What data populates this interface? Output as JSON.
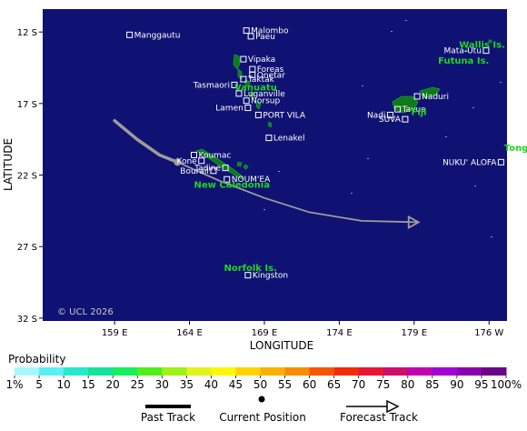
{
  "axes": {
    "xlabel": "LONGITUDE",
    "ylabel": "LATITUDE",
    "xticks": [
      "159 E",
      "164 E",
      "169 E",
      "174 E",
      "179 E",
      "176 W"
    ],
    "yticks": [
      "12 S",
      "17 S",
      "22 S",
      "27 S",
      "32 S"
    ]
  },
  "credit": "© UCL 2026",
  "towns": [
    {
      "name": "Manggautu",
      "lon": 160.0,
      "lat": -12.2
    },
    {
      "name": "Malombo",
      "lon": 167.8,
      "lat": -11.9
    },
    {
      "name": "Paeu",
      "lon": 168.1,
      "lat": -12.3
    },
    {
      "name": "Vipaka",
      "lon": 167.6,
      "lat": -13.9
    },
    {
      "name": "Foreas",
      "lon": 168.2,
      "lat": -14.6
    },
    {
      "name": "Onetar",
      "lon": 168.2,
      "lat": -15.0
    },
    {
      "name": "Taktak",
      "lon": 167.6,
      "lat": -15.3
    },
    {
      "name": "Tasmaori",
      "lon": 167.0,
      "lat": -15.7
    },
    {
      "name": "Luganville",
      "lon": 167.3,
      "lat": -16.3
    },
    {
      "name": "Norsup",
      "lon": 167.8,
      "lat": -16.8
    },
    {
      "name": "Lamen",
      "lon": 167.9,
      "lat": -17.3
    },
    {
      "name": "PORT VILA",
      "lon": 168.6,
      "lat": -17.8
    },
    {
      "name": "Lenakel",
      "lon": 169.3,
      "lat": -19.4
    },
    {
      "name": "Koumac",
      "lon": 164.3,
      "lat": -20.6
    },
    {
      "name": "Kone",
      "lon": 164.8,
      "lat": -21.0
    },
    {
      "name": "Tadine",
      "lon": 166.4,
      "lat": -21.5
    },
    {
      "name": "Bourail",
      "lon": 165.6,
      "lat": -21.7
    },
    {
      "name": "NOUM'EA",
      "lon": 166.5,
      "lat": -22.3
    },
    {
      "name": "Kingston",
      "lon": 167.9,
      "lat": -29.0
    },
    {
      "name": "Naduri",
      "lon": 179.2,
      "lat": -16.5
    },
    {
      "name": "Tavua",
      "lon": 177.9,
      "lat": -17.4
    },
    {
      "name": "Nadi",
      "lon": 177.4,
      "lat": -17.8
    },
    {
      "name": "SUVA",
      "lon": 178.4,
      "lat": -18.1
    },
    {
      "name": "NUKU' ALOFA",
      "lon": -175.2,
      "lat": -21.1
    },
    {
      "name": "Mata-Utu",
      "lon": -176.2,
      "lat": -13.3
    }
  ],
  "regions": [
    {
      "name": "Wallis Is.",
      "lon": -178.0,
      "lat": -13.1
    },
    {
      "name": "Futuna Is.",
      "lon": -179.4,
      "lat": -14.2
    },
    {
      "name": "Vanuatu",
      "lon": 167.0,
      "lat": -16.1
    },
    {
      "name": "Fiji",
      "lon": 178.8,
      "lat": -17.8
    },
    {
      "name": "Tonga",
      "lon": -175.0,
      "lat": -20.3
    },
    {
      "name": "New Caledonia",
      "lon": 164.3,
      "lat": -22.9
    },
    {
      "name": "Norfolk Is.",
      "lon": 166.3,
      "lat": -28.7
    }
  ],
  "track": {
    "past": [
      [
        159.0,
        -18.2
      ],
      [
        160.5,
        -19.5
      ],
      [
        162.0,
        -20.6
      ],
      [
        163.2,
        -21.1
      ]
    ],
    "current": [
      163.2,
      -21.1
    ],
    "forecast": [
      [
        163.2,
        -21.1
      ],
      [
        166.0,
        -22.4
      ],
      [
        169.0,
        -23.6
      ],
      [
        172.0,
        -24.6
      ],
      [
        175.5,
        -25.2
      ],
      [
        179.3,
        -25.3
      ]
    ]
  },
  "colorbar": {
    "title": "Probability",
    "labels": [
      "1%",
      "5",
      "10",
      "15",
      "20",
      "25",
      "30",
      "35",
      "40",
      "45",
      "50",
      "55",
      "60",
      "65",
      "70",
      "75",
      "80",
      "85",
      "90",
      "95",
      "100%"
    ],
    "colors": [
      "#a8f6ff",
      "#58f0f4",
      "#26e9cc",
      "#12e49a",
      "#15f05d",
      "#52ee19",
      "#9ef115",
      "#e3f31d",
      "#fdf900",
      "#fdd400",
      "#fbb000",
      "#fa8a00",
      "#f95500",
      "#f42a0a",
      "#ea1532",
      "#cf0d6b",
      "#c200b1",
      "#a300d4",
      "#8a00b0",
      "#6b0088"
    ]
  },
  "legend": {
    "past_label": "Past Track",
    "current_label": "Current Position",
    "forecast_label": "Forecast Track"
  }
}
